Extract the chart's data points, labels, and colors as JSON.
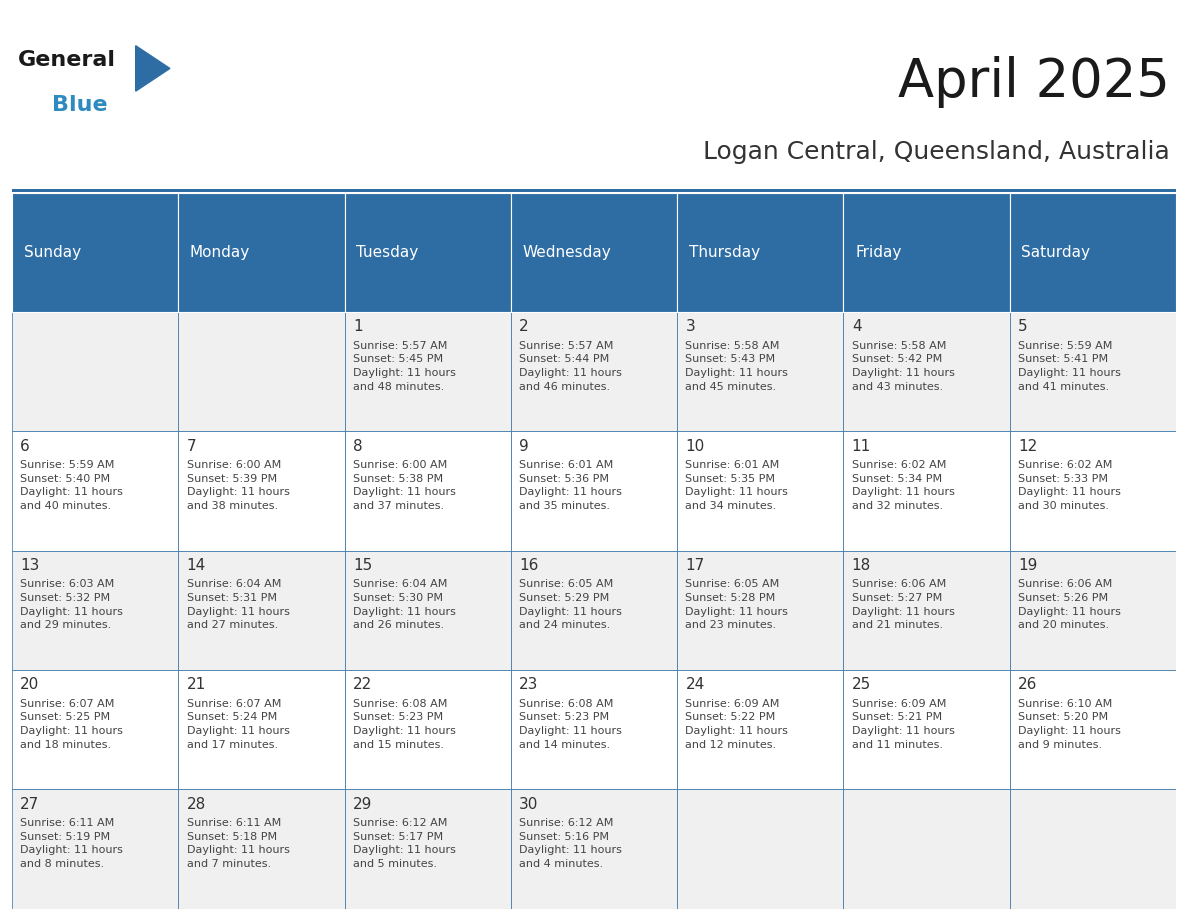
{
  "title": "April 2025",
  "subtitle": "Logan Central, Queensland, Australia",
  "header_bg_color": "#2E6DA4",
  "header_text_color": "#FFFFFF",
  "cell_bg_odd": "#F0F0F0",
  "cell_bg_even": "#FFFFFF",
  "day_number_color": "#333333",
  "cell_text_color": "#444444",
  "border_color": "#2E6DA4",
  "grid_line_color": "#AAAAAA",
  "days_of_week": [
    "Sunday",
    "Monday",
    "Tuesday",
    "Wednesday",
    "Thursday",
    "Friday",
    "Saturday"
  ],
  "weeks": [
    [
      {
        "day": 0,
        "text": ""
      },
      {
        "day": 0,
        "text": ""
      },
      {
        "day": 1,
        "text": "Sunrise: 5:57 AM\nSunset: 5:45 PM\nDaylight: 11 hours\nand 48 minutes."
      },
      {
        "day": 2,
        "text": "Sunrise: 5:57 AM\nSunset: 5:44 PM\nDaylight: 11 hours\nand 46 minutes."
      },
      {
        "day": 3,
        "text": "Sunrise: 5:58 AM\nSunset: 5:43 PM\nDaylight: 11 hours\nand 45 minutes."
      },
      {
        "day": 4,
        "text": "Sunrise: 5:58 AM\nSunset: 5:42 PM\nDaylight: 11 hours\nand 43 minutes."
      },
      {
        "day": 5,
        "text": "Sunrise: 5:59 AM\nSunset: 5:41 PM\nDaylight: 11 hours\nand 41 minutes."
      }
    ],
    [
      {
        "day": 6,
        "text": "Sunrise: 5:59 AM\nSunset: 5:40 PM\nDaylight: 11 hours\nand 40 minutes."
      },
      {
        "day": 7,
        "text": "Sunrise: 6:00 AM\nSunset: 5:39 PM\nDaylight: 11 hours\nand 38 minutes."
      },
      {
        "day": 8,
        "text": "Sunrise: 6:00 AM\nSunset: 5:38 PM\nDaylight: 11 hours\nand 37 minutes."
      },
      {
        "day": 9,
        "text": "Sunrise: 6:01 AM\nSunset: 5:36 PM\nDaylight: 11 hours\nand 35 minutes."
      },
      {
        "day": 10,
        "text": "Sunrise: 6:01 AM\nSunset: 5:35 PM\nDaylight: 11 hours\nand 34 minutes."
      },
      {
        "day": 11,
        "text": "Sunrise: 6:02 AM\nSunset: 5:34 PM\nDaylight: 11 hours\nand 32 minutes."
      },
      {
        "day": 12,
        "text": "Sunrise: 6:02 AM\nSunset: 5:33 PM\nDaylight: 11 hours\nand 30 minutes."
      }
    ],
    [
      {
        "day": 13,
        "text": "Sunrise: 6:03 AM\nSunset: 5:32 PM\nDaylight: 11 hours\nand 29 minutes."
      },
      {
        "day": 14,
        "text": "Sunrise: 6:04 AM\nSunset: 5:31 PM\nDaylight: 11 hours\nand 27 minutes."
      },
      {
        "day": 15,
        "text": "Sunrise: 6:04 AM\nSunset: 5:30 PM\nDaylight: 11 hours\nand 26 minutes."
      },
      {
        "day": 16,
        "text": "Sunrise: 6:05 AM\nSunset: 5:29 PM\nDaylight: 11 hours\nand 24 minutes."
      },
      {
        "day": 17,
        "text": "Sunrise: 6:05 AM\nSunset: 5:28 PM\nDaylight: 11 hours\nand 23 minutes."
      },
      {
        "day": 18,
        "text": "Sunrise: 6:06 AM\nSunset: 5:27 PM\nDaylight: 11 hours\nand 21 minutes."
      },
      {
        "day": 19,
        "text": "Sunrise: 6:06 AM\nSunset: 5:26 PM\nDaylight: 11 hours\nand 20 minutes."
      }
    ],
    [
      {
        "day": 20,
        "text": "Sunrise: 6:07 AM\nSunset: 5:25 PM\nDaylight: 11 hours\nand 18 minutes."
      },
      {
        "day": 21,
        "text": "Sunrise: 6:07 AM\nSunset: 5:24 PM\nDaylight: 11 hours\nand 17 minutes."
      },
      {
        "day": 22,
        "text": "Sunrise: 6:08 AM\nSunset: 5:23 PM\nDaylight: 11 hours\nand 15 minutes."
      },
      {
        "day": 23,
        "text": "Sunrise: 6:08 AM\nSunset: 5:23 PM\nDaylight: 11 hours\nand 14 minutes."
      },
      {
        "day": 24,
        "text": "Sunrise: 6:09 AM\nSunset: 5:22 PM\nDaylight: 11 hours\nand 12 minutes."
      },
      {
        "day": 25,
        "text": "Sunrise: 6:09 AM\nSunset: 5:21 PM\nDaylight: 11 hours\nand 11 minutes."
      },
      {
        "day": 26,
        "text": "Sunrise: 6:10 AM\nSunset: 5:20 PM\nDaylight: 11 hours\nand 9 minutes."
      }
    ],
    [
      {
        "day": 27,
        "text": "Sunrise: 6:11 AM\nSunset: 5:19 PM\nDaylight: 11 hours\nand 8 minutes."
      },
      {
        "day": 28,
        "text": "Sunrise: 6:11 AM\nSunset: 5:18 PM\nDaylight: 11 hours\nand 7 minutes."
      },
      {
        "day": 29,
        "text": "Sunrise: 6:12 AM\nSunset: 5:17 PM\nDaylight: 11 hours\nand 5 minutes."
      },
      {
        "day": 30,
        "text": "Sunrise: 6:12 AM\nSunset: 5:16 PM\nDaylight: 11 hours\nand 4 minutes."
      },
      {
        "day": 0,
        "text": ""
      },
      {
        "day": 0,
        "text": ""
      },
      {
        "day": 0,
        "text": ""
      }
    ]
  ],
  "logo_color_general": "#1a1a1a",
  "logo_color_blue": "#2E8BC0",
  "logo_triangle_color": "#2E6DA4",
  "title_fontsize": 38,
  "subtitle_fontsize": 18,
  "header_fontsize": 11,
  "day_num_fontsize": 11,
  "cell_text_fontsize": 8
}
